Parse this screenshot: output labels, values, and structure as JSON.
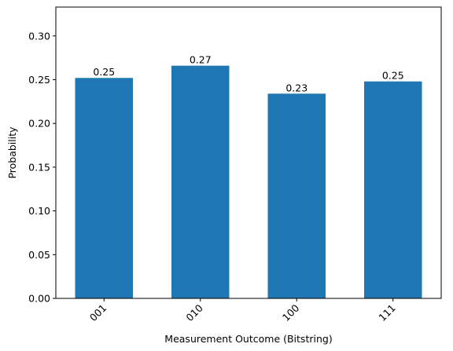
{
  "chart_data": {
    "type": "bar",
    "categories": [
      "001",
      "010",
      "100",
      "111"
    ],
    "values": [
      0.252,
      0.266,
      0.234,
      0.248
    ],
    "data_labels": [
      "0.25",
      "0.27",
      "0.23",
      "0.25"
    ],
    "title": "",
    "xlabel": "Measurement Outcome (Bitstring)",
    "ylabel": "Probability",
    "ylim": [
      0,
      0.333
    ],
    "yticks": [
      0.0,
      0.05,
      0.1,
      0.15,
      0.2,
      0.25,
      0.3
    ],
    "ytick_labels": [
      "0.00",
      "0.05",
      "0.10",
      "0.15",
      "0.20",
      "0.25",
      "0.30"
    ],
    "bar_color": "#1f77b4",
    "grid": false,
    "legend": "none"
  }
}
